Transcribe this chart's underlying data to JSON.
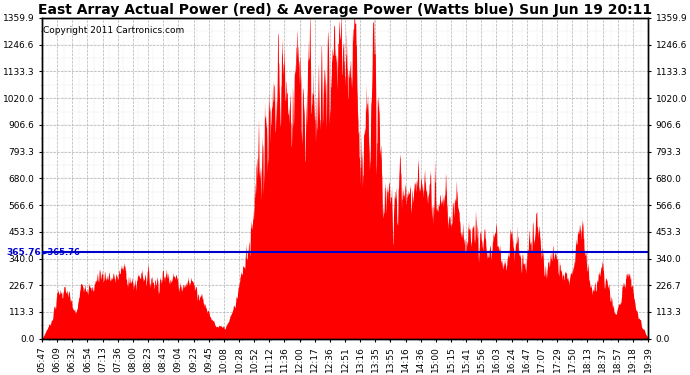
{
  "title": "East Array Actual Power (red) & Average Power (Watts blue) Sun Jun 19 20:11",
  "copyright": "Copyright 2011 Cartronics.com",
  "avg_power": 365.76,
  "ymax": 1359.9,
  "ymin": 0.0,
  "yticks": [
    0.0,
    113.3,
    226.7,
    340.0,
    453.3,
    566.6,
    680.0,
    793.3,
    906.6,
    1020.0,
    1133.3,
    1246.6,
    1359.9
  ],
  "bg_color": "#ffffff",
  "fill_color": "#ff0000",
  "line_color": "#0000cc",
  "grid_color": "#aaaaaa",
  "x_labels": [
    "05:47",
    "06:09",
    "06:32",
    "06:54",
    "07:13",
    "07:36",
    "08:00",
    "08:23",
    "08:43",
    "09:04",
    "09:23",
    "09:45",
    "10:08",
    "10:28",
    "10:52",
    "11:12",
    "11:36",
    "12:00",
    "12:17",
    "12:36",
    "12:51",
    "13:16",
    "13:35",
    "13:55",
    "14:16",
    "14:36",
    "15:00",
    "15:15",
    "15:41",
    "15:56",
    "16:03",
    "16:24",
    "16:47",
    "17:07",
    "17:29",
    "17:50",
    "18:13",
    "18:37",
    "18:57",
    "19:18",
    "19:39"
  ],
  "title_fontsize": 10,
  "label_fontsize": 6.5,
  "copyright_fontsize": 6.5,
  "n_points": 2000,
  "seed": 7
}
